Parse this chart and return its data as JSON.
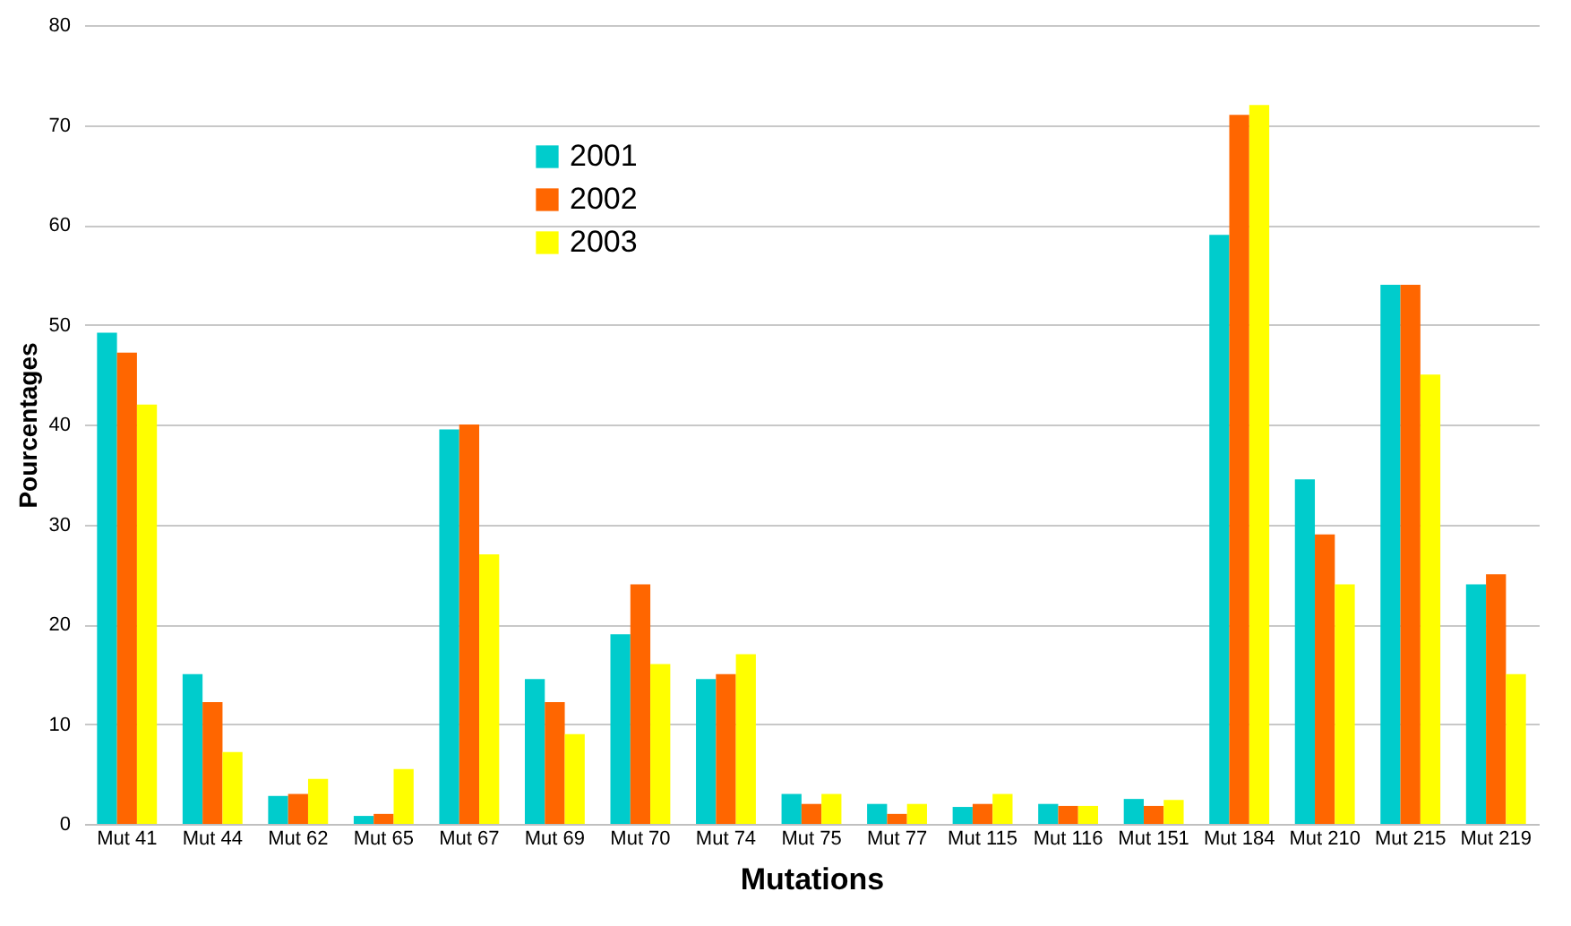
{
  "chart_data": {
    "type": "bar",
    "xlabel": "Mutations",
    "ylabel": "Pourcentages",
    "categories": [
      "Mut 41",
      "Mut 44",
      "Mut 62",
      "Mut 65",
      "Mut 67",
      "Mut 69",
      "Mut 70",
      "Mut 74",
      "Mut 75",
      "Mut 77",
      "Mut 115",
      "Mut 116",
      "Mut 151",
      "Mut 184",
      "Mut 210",
      "Mut 215",
      "Mut 219"
    ],
    "series": [
      {
        "name": "2001",
        "color": "#00cccc",
        "values": [
          49.2,
          15,
          2.8,
          0.8,
          39.5,
          14.5,
          19,
          14.5,
          3,
          2,
          1.7,
          2,
          2.5,
          59,
          34.5,
          54,
          24
        ]
      },
      {
        "name": "2002",
        "color": "#ff6600",
        "values": [
          47.2,
          12.2,
          3,
          1,
          40,
          12.2,
          24,
          15,
          2,
          1,
          2,
          1.8,
          1.8,
          71,
          29,
          54,
          25
        ]
      },
      {
        "name": "2003",
        "color": "#ffff00",
        "values": [
          42,
          7.2,
          4.5,
          5.5,
          27,
          9,
          16,
          17,
          3,
          2,
          3,
          1.8,
          2.4,
          72,
          24,
          45,
          15
        ]
      }
    ],
    "ylim": [
      0,
      80
    ],
    "yticks": [
      0,
      10,
      20,
      30,
      40,
      50,
      60,
      70,
      80
    ],
    "grid": "y",
    "legend": "top left"
  }
}
